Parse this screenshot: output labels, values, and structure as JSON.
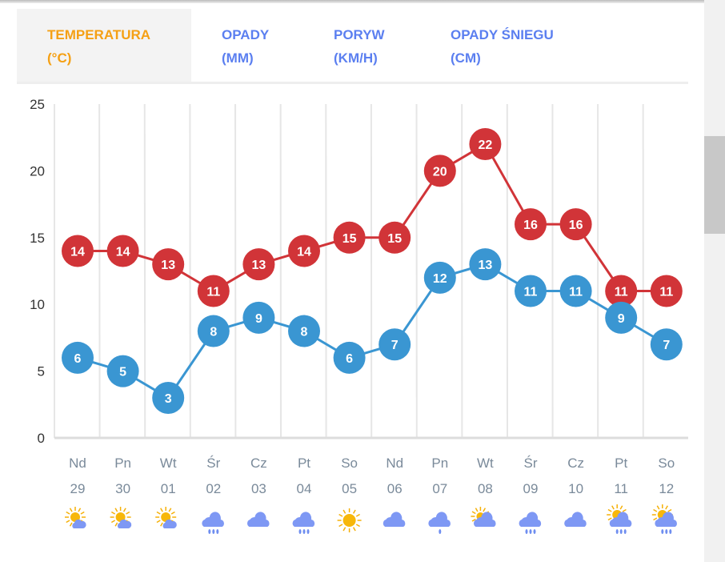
{
  "tabs": [
    {
      "label": "TEMPERATURA",
      "unit": "(°C)",
      "active": true
    },
    {
      "label": "OPADY",
      "unit": "(MM)",
      "active": false
    },
    {
      "label": "PORYW",
      "unit": "(KM/H)",
      "active": false
    },
    {
      "label": "OPADY ŚNIEGU",
      "unit": "(CM)",
      "active": false
    }
  ],
  "colors": {
    "max": "#d13438",
    "min": "#3a96d2",
    "active_tab": "#f5a014",
    "tab": "#5b7ff0"
  },
  "chart_data": {
    "type": "line",
    "ylim": [
      0,
      25
    ],
    "yticks": [
      "0",
      "5",
      "10",
      "15",
      "20",
      "25"
    ],
    "days": [
      {
        "dow": "Nd",
        "date": "29",
        "icon": "sun-cloud-icon"
      },
      {
        "dow": "Pn",
        "date": "30",
        "icon": "sun-cloud-icon"
      },
      {
        "dow": "Wt",
        "date": "01",
        "icon": "sun-cloud-icon"
      },
      {
        "dow": "Śr",
        "date": "02",
        "icon": "cloud-rain-icon"
      },
      {
        "dow": "Cz",
        "date": "03",
        "icon": "cloud-icon"
      },
      {
        "dow": "Pt",
        "date": "04",
        "icon": "cloud-rain-icon"
      },
      {
        "dow": "So",
        "date": "05",
        "icon": "sun-icon"
      },
      {
        "dow": "Nd",
        "date": "06",
        "icon": "cloud-icon"
      },
      {
        "dow": "Pn",
        "date": "07",
        "icon": "cloud-drizzle-icon"
      },
      {
        "dow": "Wt",
        "date": "08",
        "icon": "partly-sunny-cloud-icon"
      },
      {
        "dow": "Śr",
        "date": "09",
        "icon": "cloud-rain-icon"
      },
      {
        "dow": "Cz",
        "date": "10",
        "icon": "cloud-icon"
      },
      {
        "dow": "Pt",
        "date": "11",
        "icon": "sun-cloud-rain-icon"
      },
      {
        "dow": "So",
        "date": "12",
        "icon": "sun-cloud-rain-icon"
      }
    ],
    "series": [
      {
        "name": "max",
        "values": [
          14,
          14,
          13,
          11,
          13,
          14,
          15,
          15,
          20,
          22,
          16,
          16,
          11,
          11
        ]
      },
      {
        "name": "min",
        "values": [
          6,
          5,
          3,
          8,
          9,
          8,
          6,
          7,
          12,
          13,
          11,
          11,
          9,
          7
        ]
      }
    ]
  }
}
